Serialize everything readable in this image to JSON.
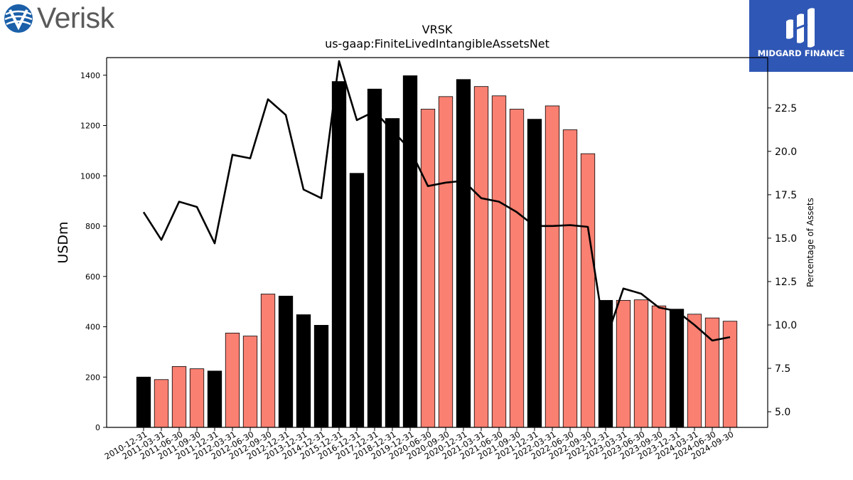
{
  "header": {
    "company_logo_text": "Verisk",
    "brand_logo_text": "MIDGARD FINANCE"
  },
  "chart_data": {
    "type": "bar",
    "title": "VRSK",
    "subtitle": "us-gaap:FiniteLivedIntangibleAssetsNet",
    "ylabel": "USDm",
    "y2label": "Percentage of Assets",
    "ylim": [
      0,
      1470
    ],
    "y2lim": [
      4.1,
      25.4
    ],
    "yticks": [
      0,
      200,
      400,
      600,
      800,
      1000,
      1200,
      1400
    ],
    "y2ticks": [
      "5.0",
      "7.5",
      "10.0",
      "12.5",
      "15.0",
      "17.5",
      "20.0",
      "22.5"
    ],
    "categories": [
      "2010-12-31",
      "2011-03-31",
      "2011-06-30",
      "2011-09-30",
      "2011-12-31",
      "2012-03-31",
      "2012-06-30",
      "2012-09-30",
      "2012-12-31",
      "2013-12-31",
      "2014-12-31",
      "2015-12-31",
      "2016-12-31",
      "2017-12-31",
      "2018-12-31",
      "2019-12-31",
      "2020-06-30",
      "2020-09-30",
      "2020-12-31",
      "2021-03-31",
      "2021-06-30",
      "2021-09-30",
      "2021-12-31",
      "2022-03-31",
      "2022-06-30",
      "2022-09-30",
      "2022-12-31",
      "2023-03-31",
      "2023-06-30",
      "2023-09-30",
      "2023-12-31",
      "2024-03-31",
      "2024-06-30",
      "2024-09-30"
    ],
    "series": [
      {
        "type": "bar",
        "values": [
          200,
          190,
          242,
          233,
          224,
          375,
          363,
          530,
          522,
          448,
          406,
          1375,
          1010,
          1345,
          1228,
          1398,
          1265,
          1315,
          1383,
          1355,
          1318,
          1265,
          1225,
          1278,
          1183,
          1088,
          505,
          505,
          507,
          483,
          470,
          450,
          435,
          422
        ],
        "colors": [
          "#000000",
          "#fa8072",
          "#fa8072",
          "#fa8072",
          "#000000",
          "#fa8072",
          "#fa8072",
          "#fa8072",
          "#000000",
          "#000000",
          "#000000",
          "#000000",
          "#000000",
          "#000000",
          "#000000",
          "#000000",
          "#fa8072",
          "#fa8072",
          "#000000",
          "#fa8072",
          "#fa8072",
          "#fa8072",
          "#000000",
          "#fa8072",
          "#fa8072",
          "#fa8072",
          "#000000",
          "#fa8072",
          "#fa8072",
          "#fa8072",
          "#000000",
          "#fa8072",
          "#fa8072",
          "#fa8072"
        ]
      },
      {
        "type": "line",
        "axis": "y2",
        "color": "#000000",
        "values": [
          16.5,
          14.9,
          17.1,
          16.8,
          14.7,
          19.8,
          19.6,
          23.0,
          22.1,
          17.8,
          17.3,
          25.2,
          21.8,
          22.3,
          21.2,
          20.1,
          18.0,
          18.2,
          18.3,
          17.3,
          17.1,
          16.5,
          15.7,
          15.7,
          15.75,
          15.65,
          9.1,
          12.1,
          11.8,
          11.0,
          10.8,
          10.0,
          9.1,
          9.3
        ]
      }
    ],
    "grid": false,
    "legend": "none"
  }
}
